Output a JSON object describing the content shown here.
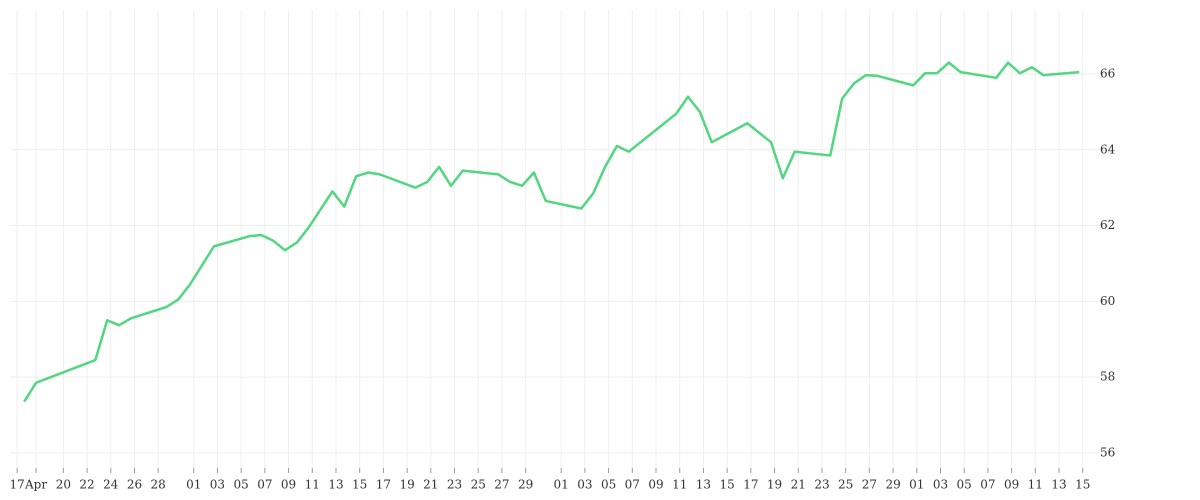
{
  "chart_data": {
    "type": "line",
    "x": [
      0,
      1,
      6,
      7,
      8,
      9,
      12,
      13,
      14,
      16,
      19,
      20,
      21,
      22,
      23,
      24,
      26,
      27,
      28,
      29,
      30,
      33,
      34,
      35,
      36,
      37,
      40,
      41,
      42,
      43,
      44,
      47,
      48,
      49,
      50,
      51,
      54,
      55,
      56,
      57,
      58,
      61,
      63,
      64,
      65,
      68,
      69,
      70,
      71,
      72,
      75,
      76,
      77,
      78,
      79,
      82,
      83,
      84,
      85,
      86,
      89
    ],
    "series": [
      {
        "color": "#52d67f",
        "values": [
          57.35,
          57.85,
          58.45,
          59.5,
          59.37,
          59.55,
          59.85,
          60.05,
          60.45,
          61.45,
          61.72,
          61.75,
          61.6,
          61.35,
          61.55,
          61.95,
          62.9,
          62.5,
          63.3,
          63.4,
          63.35,
          63.0,
          63.15,
          63.55,
          63.05,
          63.45,
          63.35,
          63.15,
          63.05,
          63.4,
          62.65,
          62.45,
          62.85,
          63.55,
          64.1,
          63.95,
          64.7,
          64.95,
          65.4,
          65.0,
          64.2,
          64.7,
          64.2,
          63.25,
          63.95,
          63.85,
          65.35,
          65.75,
          65.97,
          65.95,
          65.7,
          66.02,
          66.02,
          66.3,
          66.05,
          65.9,
          66.3,
          66.02,
          66.18,
          65.97,
          66.05
        ]
      }
    ],
    "xlim": [
      -1.2,
      91.6
    ],
    "xticks": [
      {
        "value": -0.6,
        "label": "17"
      },
      {
        "value": 1,
        "label": "Apr"
      },
      {
        "value": 3.3,
        "label": "20"
      },
      {
        "value": 5.3,
        "label": "22"
      },
      {
        "value": 7.3,
        "label": "24"
      },
      {
        "value": 9.3,
        "label": "26"
      },
      {
        "value": 11.3,
        "label": "28"
      },
      {
        "value": 14.3,
        "label": "01"
      },
      {
        "value": 16.3,
        "label": "03"
      },
      {
        "value": 18.3,
        "label": "05"
      },
      {
        "value": 20.3,
        "label": "07"
      },
      {
        "value": 22.3,
        "label": "09"
      },
      {
        "value": 24.3,
        "label": "11"
      },
      {
        "value": 26.3,
        "label": "13"
      },
      {
        "value": 28.3,
        "label": "15"
      },
      {
        "value": 30.3,
        "label": "17"
      },
      {
        "value": 32.3,
        "label": "19"
      },
      {
        "value": 34.3,
        "label": "21"
      },
      {
        "value": 36.3,
        "label": "23"
      },
      {
        "value": 38.3,
        "label": "25"
      },
      {
        "value": 40.3,
        "label": "27"
      },
      {
        "value": 42.3,
        "label": "29"
      },
      {
        "value": 45.3,
        "label": "01"
      },
      {
        "value": 47.3,
        "label": "03"
      },
      {
        "value": 49.3,
        "label": "05"
      },
      {
        "value": 51.3,
        "label": "07"
      },
      {
        "value": 53.3,
        "label": "09"
      },
      {
        "value": 55.3,
        "label": "11"
      },
      {
        "value": 57.3,
        "label": "13"
      },
      {
        "value": 59.3,
        "label": "15"
      },
      {
        "value": 61.3,
        "label": "17"
      },
      {
        "value": 63.3,
        "label": "19"
      },
      {
        "value": 65.3,
        "label": "21"
      },
      {
        "value": 67.3,
        "label": "23"
      },
      {
        "value": 69.3,
        "label": "25"
      },
      {
        "value": 71.3,
        "label": "27"
      },
      {
        "value": 73.3,
        "label": "29"
      },
      {
        "value": 75.3,
        "label": "01"
      },
      {
        "value": 77.3,
        "label": "03"
      },
      {
        "value": 79.3,
        "label": "05"
      },
      {
        "value": 81.3,
        "label": "07"
      },
      {
        "value": 83.3,
        "label": "09"
      },
      {
        "value": 85.3,
        "label": "11"
      },
      {
        "value": 87.3,
        "label": "13"
      },
      {
        "value": 89.3,
        "label": "15"
      }
    ],
    "ylim": [
      55.6,
      67.69
    ],
    "yticks": [
      56,
      58,
      60,
      62,
      64,
      66
    ],
    "grid": true
  }
}
